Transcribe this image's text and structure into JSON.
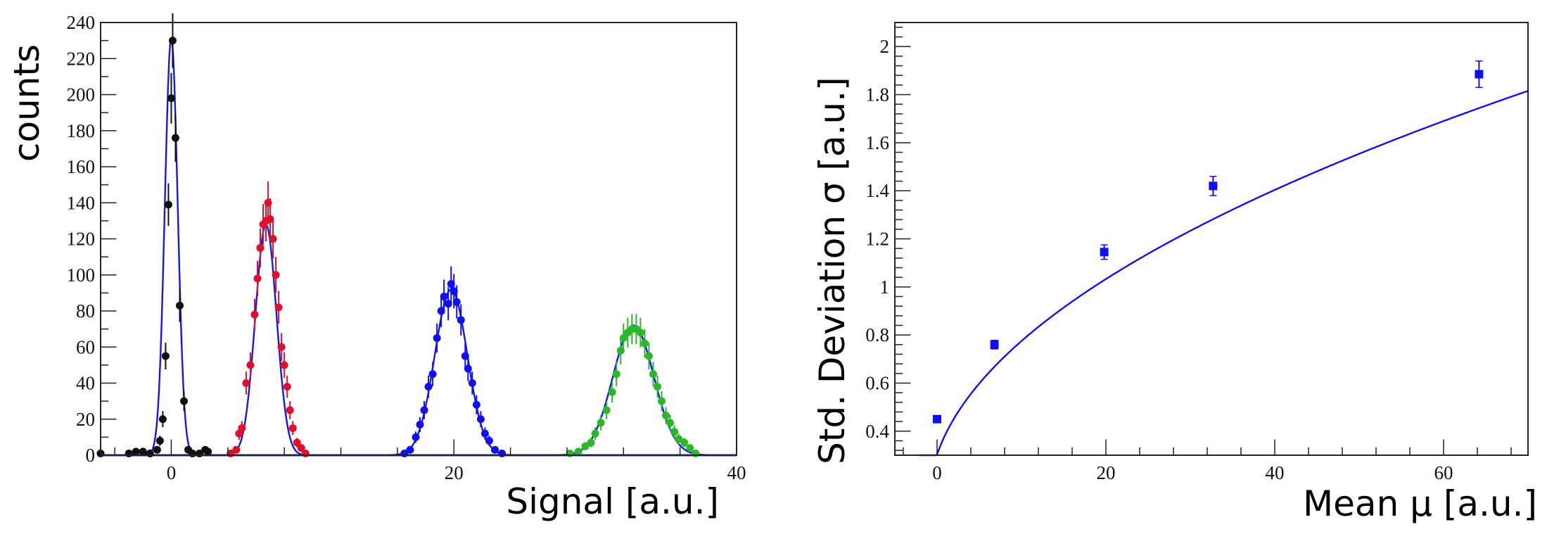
{
  "figure": {
    "panels": [
      {
        "id": "histogram-panel",
        "xlabel": "Signal [a.u.]",
        "ylabel": "counts"
      },
      {
        "id": "sigma-panel",
        "xlabel": "Mean µ [a.u.]",
        "ylabel": "Std. Deviation σ [a.u.]"
      }
    ]
  },
  "chart_data": [
    {
      "type": "scatter",
      "title": "",
      "xlabel": "Signal [a.u.]",
      "ylabel": "counts",
      "xlim": [
        -5,
        40
      ],
      "ylim": [
        0,
        240
      ],
      "x_ticks": [
        0,
        20,
        40
      ],
      "y_ticks": [
        0,
        20,
        40,
        60,
        80,
        100,
        120,
        140,
        160,
        180,
        200,
        220,
        240
      ],
      "grid": false,
      "legend": "none",
      "series": [
        {
          "color": "#111111",
          "points": [
            [
              -5,
              1
            ],
            [
              -3,
              1
            ],
            [
              -2.5,
              2
            ],
            [
              -2,
              2
            ],
            [
              -1.5,
              1
            ],
            [
              -1,
              3
            ],
            [
              -0.8,
              8
            ],
            [
              -0.6,
              20
            ],
            [
              -0.4,
              55
            ],
            [
              -0.2,
              139
            ],
            [
              0,
              198
            ],
            [
              0.1,
              230
            ],
            [
              0.3,
              176
            ],
            [
              0.6,
              83
            ],
            [
              0.9,
              30
            ],
            [
              1.2,
              3
            ],
            [
              1.5,
              1
            ],
            [
              2,
              1
            ],
            [
              2.4,
              3
            ],
            [
              2.6,
              2
            ]
          ],
          "fit": {
            "kind": "gauss",
            "amplitude": 232,
            "mean": 0.0,
            "sigma": 0.45
          }
        },
        {
          "color": "#e0102a",
          "points": [
            [
              4.2,
              1
            ],
            [
              4.6,
              3
            ],
            [
              4.8,
              12
            ],
            [
              5.0,
              15
            ],
            [
              5.3,
              40
            ],
            [
              5.6,
              50
            ],
            [
              5.9,
              78
            ],
            [
              6.1,
              98
            ],
            [
              6.3,
              115
            ],
            [
              6.5,
              128
            ],
            [
              6.7,
              130
            ],
            [
              6.85,
              140
            ],
            [
              7.0,
              131
            ],
            [
              7.2,
              120
            ],
            [
              7.4,
              100
            ],
            [
              7.6,
              82
            ],
            [
              7.8,
              60
            ],
            [
              8.0,
              50
            ],
            [
              8.2,
              38
            ],
            [
              8.4,
              25
            ],
            [
              8.6,
              15
            ],
            [
              8.9,
              7
            ],
            [
              9.2,
              4
            ],
            [
              9.5,
              1
            ]
          ],
          "fit": {
            "kind": "gauss",
            "amplitude": 128,
            "mean": 6.7,
            "sigma": 0.75
          }
        },
        {
          "color": "#1010ee",
          "points": [
            [
              16.5,
              1
            ],
            [
              16.9,
              3
            ],
            [
              17.3,
              10
            ],
            [
              17.6,
              17
            ],
            [
              17.9,
              25
            ],
            [
              18.2,
              38
            ],
            [
              18.5,
              45
            ],
            [
              18.8,
              65
            ],
            [
              19.1,
              80
            ],
            [
              19.3,
              88
            ],
            [
              19.6,
              84
            ],
            [
              19.8,
              95
            ],
            [
              20.0,
              91
            ],
            [
              20.2,
              85
            ],
            [
              20.5,
              75
            ],
            [
              20.8,
              55
            ],
            [
              21.0,
              48
            ],
            [
              21.3,
              40
            ],
            [
              21.6,
              28
            ],
            [
              21.9,
              20
            ],
            [
              22.2,
              12
            ],
            [
              22.5,
              8
            ],
            [
              22.9,
              3
            ],
            [
              23.4,
              1
            ]
          ],
          "fit": {
            "kind": "gauss",
            "amplitude": 92,
            "mean": 19.8,
            "sigma": 1.15
          }
        },
        {
          "color": "#2ab82a",
          "points": [
            [
              28.2,
              1
            ],
            [
              28.8,
              2
            ],
            [
              29.3,
              5
            ],
            [
              29.7,
              7
            ],
            [
              30.0,
              12
            ],
            [
              30.4,
              18
            ],
            [
              30.8,
              25
            ],
            [
              31.2,
              35
            ],
            [
              31.5,
              45
            ],
            [
              31.8,
              58
            ],
            [
              32.0,
              65
            ],
            [
              32.3,
              68
            ],
            [
              32.6,
              70
            ],
            [
              32.9,
              70
            ],
            [
              33.2,
              68
            ],
            [
              33.5,
              62
            ],
            [
              33.8,
              55
            ],
            [
              34.1,
              45
            ],
            [
              34.4,
              38
            ],
            [
              34.7,
              30
            ],
            [
              35.0,
              22
            ],
            [
              35.3,
              18
            ],
            [
              35.6,
              13
            ],
            [
              35.9,
              9
            ],
            [
              36.3,
              7
            ],
            [
              36.7,
              4
            ],
            [
              37.1,
              1
            ]
          ],
          "fit": {
            "kind": "gauss",
            "amplitude": 72,
            "mean": 32.7,
            "sigma": 1.45
          }
        }
      ]
    },
    {
      "type": "scatter",
      "title": "",
      "xlabel": "Mean µ [a.u.]",
      "ylabel": "Std. Deviation σ [a.u.]",
      "xlim": [
        -5,
        70
      ],
      "ylim": [
        0.3,
        2.1
      ],
      "x_ticks": [
        0,
        20,
        40,
        60
      ],
      "y_ticks": [
        0.4,
        0.6,
        0.8,
        1,
        1.2,
        1.4,
        1.6,
        1.8,
        2
      ],
      "grid": false,
      "legend": "none",
      "series": [
        {
          "color": "#1010ee",
          "points": [
            [
              0,
              0.45,
              0.012
            ],
            [
              6.8,
              0.76,
              0.018
            ],
            [
              19.8,
              1.145,
              0.03
            ],
            [
              32.7,
              1.42,
              0.04
            ],
            [
              64.2,
              1.885,
              0.055
            ]
          ],
          "fit": {
            "kind": "sqrt",
            "a": 0.2036,
            "b": 0.2026,
            "c": 0.1,
            "x_from": -2.1,
            "x_to": 70
          }
        }
      ]
    }
  ]
}
